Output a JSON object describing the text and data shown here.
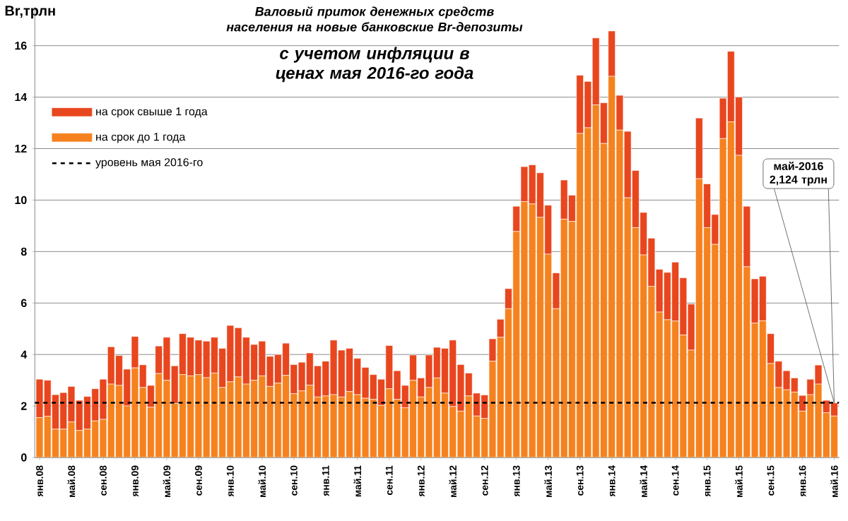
{
  "chart_data": {
    "type": "bar",
    "stacked": true,
    "title": "Валовый приток денежных средств населения на новые банковские Br-депозиты",
    "subtitle": "с учетом инфляции в ценах мая 2016-го года",
    "ylabel": "Br,трлн",
    "categories": [
      "янв.08",
      null,
      null,
      null,
      "май.08",
      null,
      null,
      null,
      "сен.08",
      null,
      null,
      null,
      "янв.09",
      null,
      null,
      null,
      "май.09",
      null,
      null,
      null,
      "сен.09",
      null,
      null,
      null,
      "янв.10",
      null,
      null,
      null,
      "май.10",
      null,
      null,
      null,
      "сен.10",
      null,
      null,
      null,
      "янв.11",
      null,
      null,
      null,
      "май.11",
      null,
      null,
      null,
      "сен.11",
      null,
      null,
      null,
      "янв.12",
      null,
      null,
      null,
      "май.12",
      null,
      null,
      null,
      "сен.12",
      null,
      null,
      null,
      "янв.13",
      null,
      null,
      null,
      "май.13",
      null,
      null,
      null,
      "сен.13",
      null,
      null,
      null,
      "янв.14",
      null,
      null,
      null,
      "май.14",
      null,
      null,
      null,
      "сен.14",
      null,
      null,
      null,
      "янв.15",
      null,
      null,
      null,
      "май.15",
      null,
      null,
      null,
      "сен.15",
      null,
      null,
      null,
      "янв.16",
      null,
      null,
      null,
      "май.16"
    ],
    "series": [
      {
        "name": "на срок до 1 года",
        "color": "#f5821f",
        "values": [
          1.55,
          1.6,
          1.1,
          1.1,
          1.38,
          1.05,
          1.1,
          1.42,
          1.48,
          2.85,
          2.8,
          2.0,
          3.48,
          2.72,
          1.95,
          3.26,
          3.0,
          2.1,
          3.22,
          3.17,
          3.22,
          3.1,
          3.28,
          2.72,
          2.94,
          3.13,
          2.85,
          3.0,
          3.17,
          2.76,
          2.89,
          3.19,
          2.48,
          2.59,
          2.81,
          2.35,
          2.39,
          2.44,
          2.35,
          2.56,
          2.44,
          2.3,
          2.26,
          2.02,
          2.67,
          2.26,
          1.93,
          3.0,
          2.35,
          2.72,
          3.09,
          2.5,
          1.98,
          1.8,
          2.39,
          1.61,
          1.52,
          3.74,
          4.67,
          5.78,
          8.78,
          9.94,
          9.85,
          9.33,
          7.9,
          5.78,
          9.26,
          9.17,
          12.59,
          12.81,
          13.7,
          12.2,
          14.81,
          12.72,
          10.09,
          8.93,
          7.87,
          6.65,
          5.65,
          5.35,
          5.3,
          4.76,
          4.17,
          10.83,
          8.93,
          8.28,
          12.39,
          13.04,
          11.74,
          7.41,
          5.22,
          5.31,
          3.65,
          2.72,
          2.63,
          2.54,
          1.8,
          2.44,
          2.85,
          1.74,
          1.61
        ]
      },
      {
        "name": "на срок свыше 1 года",
        "color": "#e8461e",
        "values": [
          1.49,
          1.4,
          1.34,
          1.42,
          1.38,
          1.17,
          1.27,
          1.25,
          1.56,
          1.45,
          1.16,
          1.43,
          1.22,
          0.88,
          0.85,
          1.07,
          1.67,
          1.46,
          1.59,
          1.5,
          1.34,
          1.42,
          1.39,
          1.52,
          2.19,
          1.91,
          1.82,
          1.39,
          1.35,
          1.17,
          1.11,
          1.25,
          1.13,
          1.11,
          1.25,
          1.21,
          1.35,
          2.12,
          1.82,
          1.68,
          1.41,
          1.2,
          0.96,
          1.02,
          1.68,
          1.11,
          0.87,
          0.98,
          0.74,
          1.26,
          1.19,
          1.74,
          2.58,
          1.81,
          0.89,
          0.89,
          0.91,
          0.87,
          0.7,
          0.78,
          0.98,
          1.36,
          1.52,
          1.73,
          1.9,
          1.39,
          1.52,
          1.02,
          2.26,
          1.8,
          2.6,
          1.58,
          1.76,
          1.35,
          2.58,
          2.22,
          1.65,
          1.87,
          1.66,
          1.84,
          2.29,
          2.22,
          1.79,
          2.36,
          1.7,
          1.16,
          1.57,
          2.74,
          2.26,
          2.35,
          1.72,
          1.73,
          1.16,
          1.02,
          0.74,
          0.55,
          0.61,
          0.6,
          0.74,
          0.48,
          0.51
        ]
      }
    ],
    "ref_lines": [
      {
        "axis": "y",
        "value": 2.124,
        "label": "уровень мая 2016-го",
        "color": "#000000",
        "line_style": "dashed"
      }
    ],
    "annotations": [
      "май-2016 2,124 трлн"
    ],
    "ylim": [
      0,
      17.5
    ],
    "yticks": [
      0,
      2,
      4,
      6,
      8,
      10,
      12,
      14,
      16
    ],
    "grid": "y",
    "legend": "top left"
  }
}
